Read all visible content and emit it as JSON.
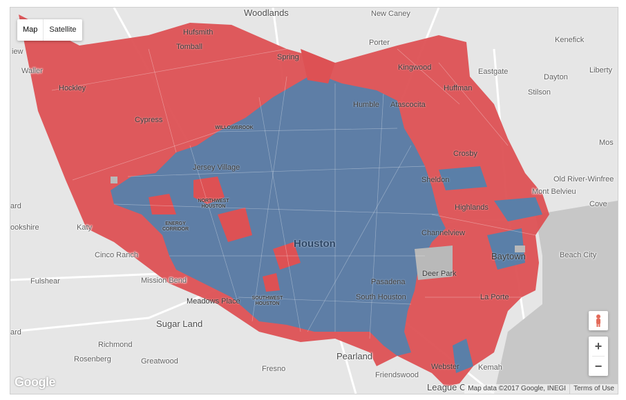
{
  "map_type": {
    "map_label": "Map",
    "satellite_label": "Satellite"
  },
  "colors": {
    "red": "#dd5154",
    "blue": "#5a7fa8",
    "land": "#e6e6e6",
    "water": "#c7c7c7"
  },
  "places": {
    "woodlands": "Woodlands",
    "new_caney": "New Caney",
    "kenefick": "Kenefick",
    "porter": "Porter",
    "waller": "Waller",
    "eastgate": "Eastgate",
    "dayton": "Dayton",
    "liberty": "Liberty",
    "stilson": "Stilson",
    "hockley": "Hockley",
    "cypress": "Cypress",
    "katy": "Katy",
    "cinco_ranch": "Cinco Ranch",
    "fulshear": "Fulshear",
    "mission_bend": "Mission Bend",
    "sugar_land": "Sugar Land",
    "richmond": "Richmond",
    "rosenberg": "Rosenberg",
    "greatwood": "Greatwood",
    "fresno": "Fresno",
    "pearland": "Pearland",
    "friendswood": "Friendswood",
    "league_city": "League C",
    "kemah": "Kemah",
    "beach_city": "Beach City",
    "cove": "Cove",
    "mont_belvieu": "Mont Belvieu",
    "old_river": "Old River-Winfree",
    "mos": "Mos",
    "houston": "Houston",
    "baytown": "Baytown",
    "la_porte": "La Porte",
    "channelview": "Channelview",
    "highlands": "Highlands",
    "sheldon": "Sheldon",
    "crosby": "Crosby",
    "huffman": "Huffman",
    "humble": "Humble",
    "atascocita": "Atascocita",
    "spring": "Spring",
    "tomball": "Tomball",
    "hufsmith": "Hufsmith",
    "jersey_village": "Jersey Village",
    "pasadena": "Pasadena",
    "south_houston": "South Houston",
    "deer_park": "Deer Park",
    "meadows_place": "Meadows Place",
    "kingwood": "Kingwood",
    "webster": "Webster",
    "ookshire": "ookshire",
    "iew": "iew",
    "ard": "ard",
    "northwest_houston": "NORTHWEST HOUSTON",
    "energy_corridor": "ENERGY CORRIDOR",
    "willowbrook": "WILLOWBROOK",
    "southwest_houston": "SOUTHWEST HOUSTON"
  },
  "controls": {
    "zoom_in": "+",
    "zoom_out": "−"
  },
  "footer": {
    "logo": "Google",
    "map_data": "Map data ©2017 Google, INEGI",
    "terms": "Terms of Use"
  }
}
